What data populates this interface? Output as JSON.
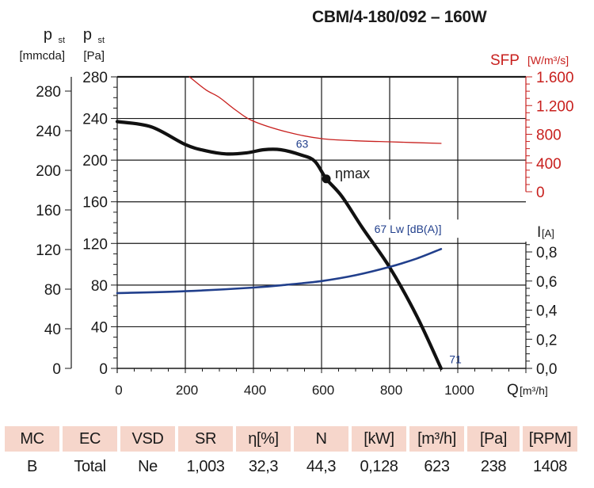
{
  "title": "CBM/4-180/092 – 160W",
  "chart_data": {
    "type": "line",
    "title": "CBM/4-180/092 – 160W",
    "xlabel": "Q",
    "xunit": "[m³/h]",
    "x_ticks": [
      0,
      200,
      400,
      600,
      800,
      1000
    ],
    "x_tick_labels": [
      "0",
      "200",
      "400",
      "600",
      "800",
      "1000"
    ],
    "xlim": [
      0,
      1200
    ],
    "grid": true,
    "axes": {
      "left_outer": {
        "label": "p",
        "sub": "st",
        "unit": "[mmcda]",
        "ylim": [
          0,
          280
        ],
        "ticks": [
          0,
          40,
          80,
          120,
          160,
          200,
          240,
          280
        ],
        "tick_labels": [
          "0",
          "40",
          "80",
          "120",
          "160",
          "200",
          "240",
          "280"
        ]
      },
      "left_inner": {
        "label": "p",
        "sub": "st",
        "unit": "[Pa]",
        "ylim": [
          0,
          280
        ],
        "ticks": [
          0,
          40,
          80,
          120,
          160,
          200,
          240,
          280
        ],
        "tick_labels": [
          "0",
          "40",
          "80",
          "120",
          "160",
          "200",
          "240",
          "280"
        ]
      },
      "right_sfp": {
        "label": "SFP",
        "unit": "[W/m³/s]",
        "color": "#c8201e",
        "ylim": [
          0,
          1600
        ],
        "ticks": [
          0,
          400,
          800,
          1200,
          1600
        ],
        "tick_labels": [
          "0",
          "400",
          "800",
          "1.200",
          "1.600"
        ]
      },
      "right_current": {
        "label": "I",
        "unit": "[A]",
        "ylim": [
          0,
          0.8
        ],
        "ticks": [
          0,
          0.2,
          0.4,
          0.6,
          0.8
        ],
        "tick_labels": [
          "0,0",
          "0,2",
          "0,4",
          "0,6",
          "0,8"
        ]
      }
    },
    "series": [
      {
        "name": "Static pressure",
        "axis": "left_inner",
        "color": "#111111",
        "x": [
          0,
          100,
          200,
          260,
          320,
          380,
          430,
          480,
          540,
          580,
          614,
          660,
          720,
          800,
          880,
          951
        ],
        "y": [
          237,
          232,
          215,
          209,
          206,
          207,
          210,
          210,
          205,
          199,
          182,
          165,
          135,
          97,
          50,
          0
        ]
      },
      {
        "name": "SFP",
        "axis": "right_sfp",
        "color": "#c8201e",
        "x": [
          212,
          260,
          300,
          350,
          400,
          500,
          600,
          700,
          800,
          951
        ],
        "y": [
          1600,
          1420,
          1313,
          1130,
          982,
          830,
          739,
          710,
          695,
          673
        ]
      },
      {
        "name": "Current",
        "axis": "right_current",
        "color": "#213f8c",
        "x": [
          0,
          200,
          400,
          500,
          600,
          700,
          800,
          880,
          951
        ],
        "y": [
          0.517,
          0.53,
          0.555,
          0.575,
          0.6,
          0.64,
          0.697,
          0.755,
          0.82
        ]
      }
    ],
    "annotations": [
      {
        "text": "ηmax",
        "x": 614,
        "y": 182,
        "axis": "left_inner",
        "marker": "dot"
      },
      {
        "text": "63",
        "x": 525,
        "y": 212,
        "axis": "left_inner",
        "color": "#213f8c"
      },
      {
        "text": "67 Lw [dB(A)]",
        "x": 755,
        "y": 130,
        "axis": "left_inner",
        "color": "#213f8c"
      },
      {
        "text": "71",
        "x": 975,
        "y": 5,
        "axis": "left_inner",
        "color": "#213f8c"
      }
    ]
  },
  "table": {
    "headers": [
      "MC",
      "EC",
      "VSD",
      "SR",
      "η[%]",
      "N",
      "[kW]",
      "[m³/h]",
      "[Pa]",
      "[RPM]"
    ],
    "values": [
      "B",
      "Total",
      "Ne",
      "1,003",
      "32,3",
      "44,3",
      "0,128",
      "623",
      "238",
      "1408"
    ]
  }
}
